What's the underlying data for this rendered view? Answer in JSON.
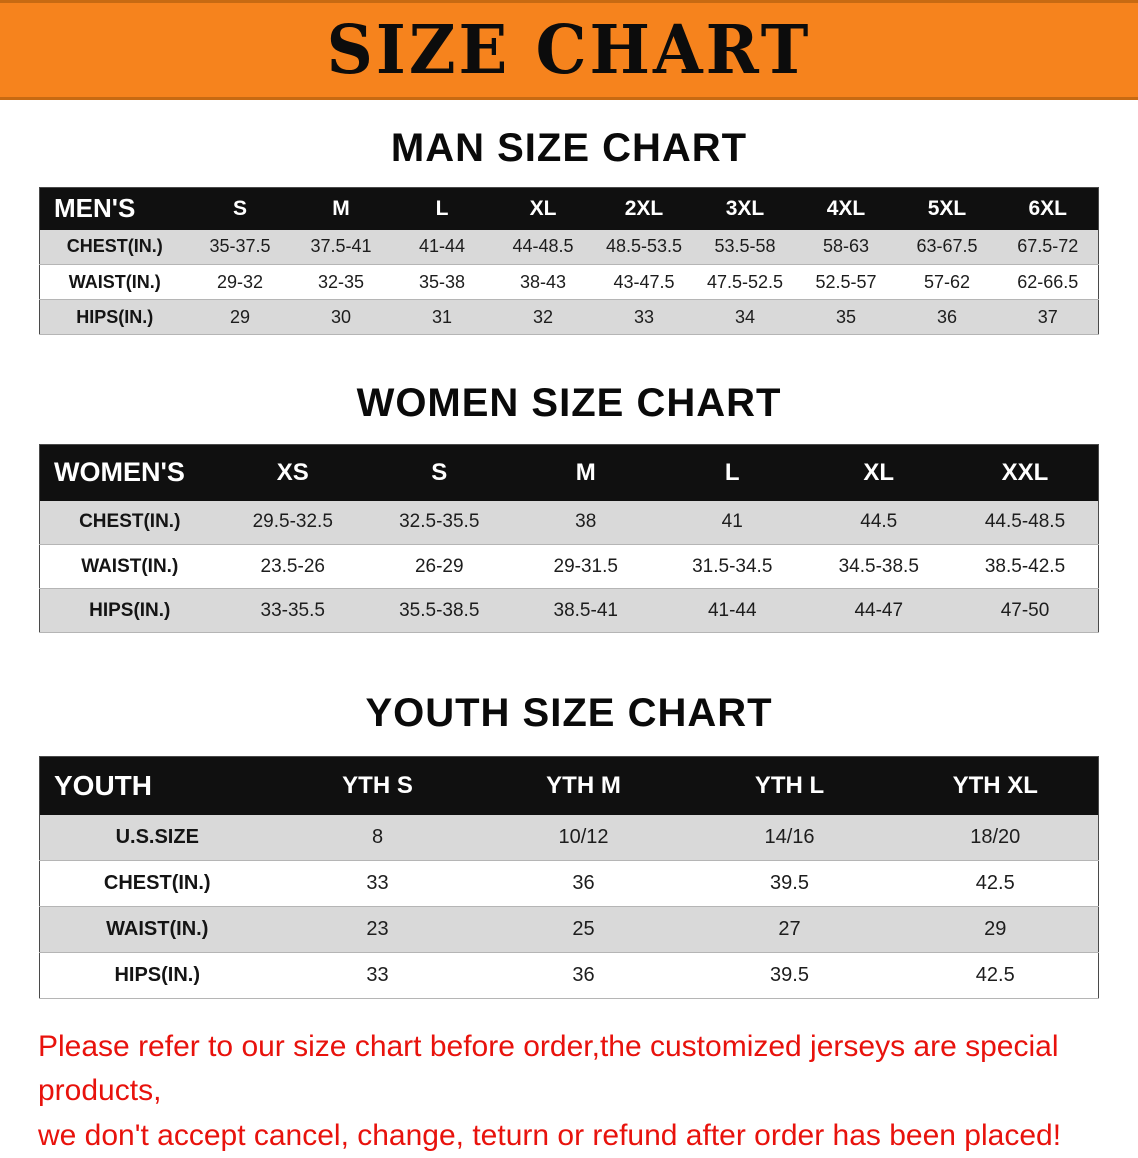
{
  "banner": {
    "title": "SIZE CHART",
    "bg_color": "#f6831d",
    "text_color": "#0c0c0c"
  },
  "sections": [
    {
      "id": "men",
      "heading": "MAN SIZE CHART",
      "table": {
        "header": [
          "MEN'S",
          "S",
          "M",
          "L",
          "XL",
          "2XL",
          "3XL",
          "4XL",
          "5XL",
          "6XL"
        ],
        "rows": [
          [
            "CHEST(IN.)",
            "35-37.5",
            "37.5-41",
            "41-44",
            "44-48.5",
            "48.5-53.5",
            "53.5-58",
            "58-63",
            "63-67.5",
            "67.5-72"
          ],
          [
            "WAIST(IN.)",
            "29-32",
            "32-35",
            "35-38",
            "38-43",
            "43-47.5",
            "47.5-52.5",
            "52.5-57",
            "57-62",
            "62-66.5"
          ],
          [
            "HIPS(IN.)",
            "29",
            "30",
            "31",
            "32",
            "33",
            "34",
            "35",
            "36",
            "37"
          ]
        ]
      }
    },
    {
      "id": "women",
      "heading": "WOMEN SIZE CHART",
      "table": {
        "header": [
          "WOMEN'S",
          "XS",
          "S",
          "M",
          "L",
          "XL",
          "XXL"
        ],
        "rows": [
          [
            "CHEST(IN.)",
            "29.5-32.5",
            "32.5-35.5",
            "38",
            "41",
            "44.5",
            "44.5-48.5"
          ],
          [
            "WAIST(IN.)",
            "23.5-26",
            "26-29",
            "29-31.5",
            "31.5-34.5",
            "34.5-38.5",
            "38.5-42.5"
          ],
          [
            "HIPS(IN.)",
            "33-35.5",
            "35.5-38.5",
            "38.5-41",
            "41-44",
            "44-47",
            "47-50"
          ]
        ]
      }
    },
    {
      "id": "youth",
      "heading": "YOUTH SIZE CHART",
      "table": {
        "header": [
          "YOUTH",
          "YTH S",
          "YTH M",
          "YTH L",
          "YTH XL"
        ],
        "rows": [
          [
            "U.S.SIZE",
            "8",
            "10/12",
            "14/16",
            "18/20"
          ],
          [
            "CHEST(IN.)",
            "33",
            "36",
            "39.5",
            "42.5"
          ],
          [
            "WAIST(IN.)",
            "23",
            "25",
            "27",
            "29"
          ],
          [
            "HIPS(IN.)",
            "33",
            "36",
            "39.5",
            "42.5"
          ]
        ]
      }
    }
  ],
  "notice": {
    "line1": "Please refer to our size chart before order,the customized jerseys are special products,",
    "line2": "we don't accept cancel, change, teturn or refund after order has been placed!",
    "color": "#e8120c"
  }
}
